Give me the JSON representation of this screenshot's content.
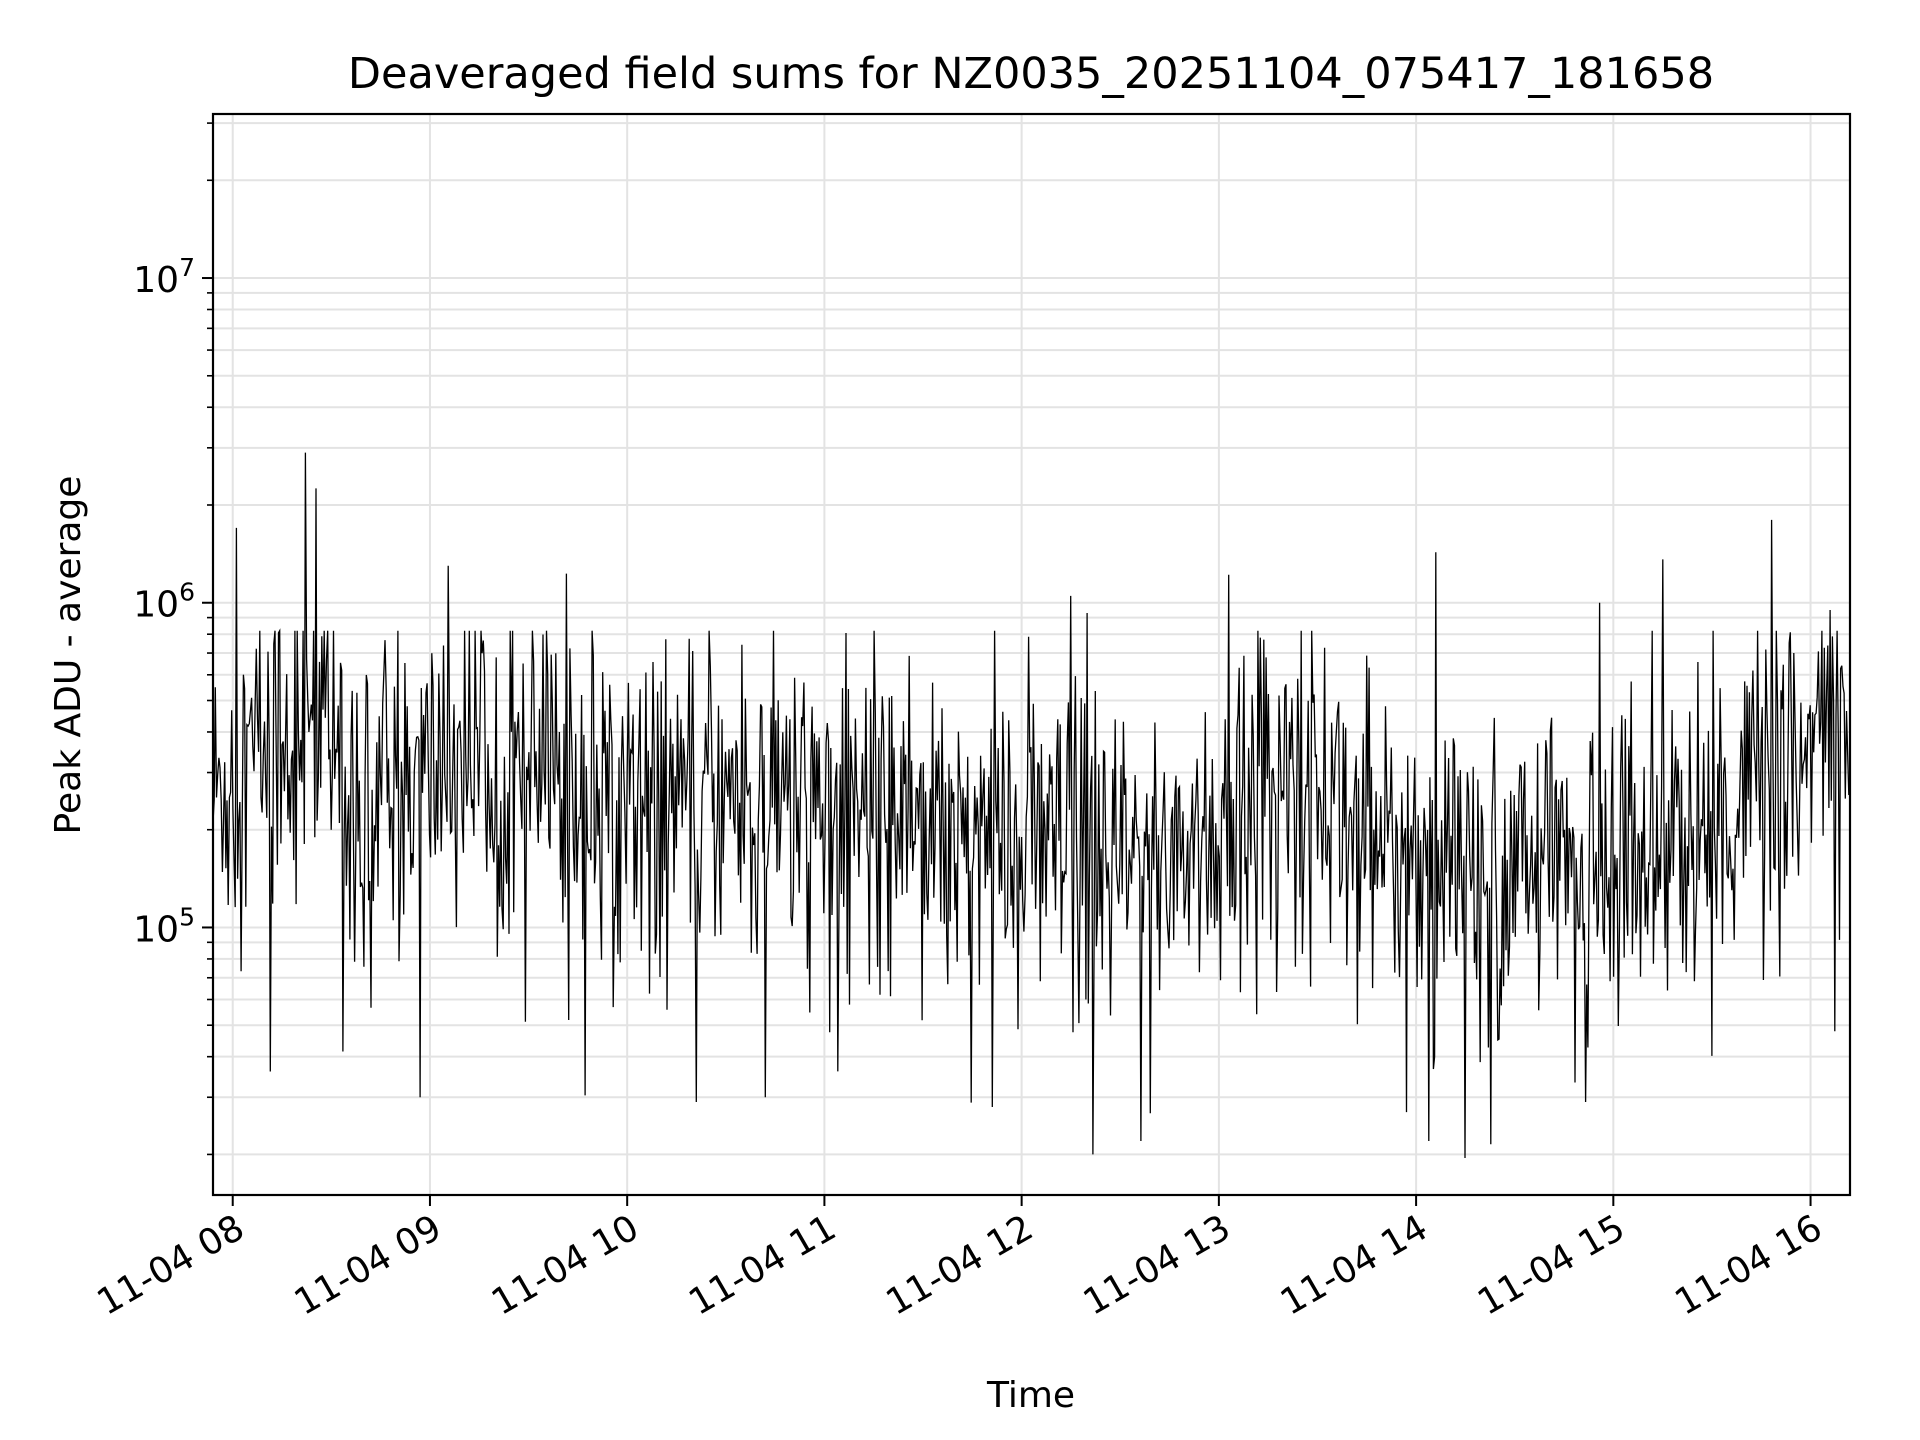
{
  "chart_data": {
    "type": "line",
    "title": "Deaveraged field sums for NZ0035_20251104_075417_181658",
    "xlabel": "Time",
    "ylabel": "Peak ADU - average",
    "yscale": "log",
    "ylim": [
      15000,
      32000000
    ],
    "xlim_hours": [
      7.9,
      16.2
    ],
    "grid": true,
    "x_ticks": [
      {
        "value": 8,
        "label": "11-04 08"
      },
      {
        "value": 9,
        "label": "11-04 09"
      },
      {
        "value": 10,
        "label": "11-04 10"
      },
      {
        "value": 11,
        "label": "11-04 11"
      },
      {
        "value": 12,
        "label": "11-04 12"
      },
      {
        "value": 13,
        "label": "11-04 13"
      },
      {
        "value": 14,
        "label": "11-04 14"
      },
      {
        "value": 15,
        "label": "11-04 15"
      },
      {
        "value": 16,
        "label": "11-04 16"
      }
    ],
    "y_ticks": [
      {
        "value": 100000,
        "base": "10",
        "exp": "5"
      },
      {
        "value": 1000000,
        "base": "10",
        "exp": "6"
      },
      {
        "value": 10000000,
        "base": "10",
        "exp": "7"
      }
    ],
    "series": [
      {
        "name": "Deaveraged field sum",
        "color": "#000000",
        "baseline": [
          [
            7.9,
            250000
          ],
          [
            8.2,
            400000
          ],
          [
            8.5,
            430000
          ],
          [
            8.6,
            250000
          ],
          [
            9.0,
            300000
          ],
          [
            9.3,
            380000
          ],
          [
            9.6,
            280000
          ],
          [
            10.0,
            270000
          ],
          [
            10.5,
            260000
          ],
          [
            11.0,
            250000
          ],
          [
            11.5,
            250000
          ],
          [
            12.0,
            180000
          ],
          [
            12.5,
            150000
          ],
          [
            13.0,
            200000
          ],
          [
            13.3,
            320000
          ],
          [
            13.6,
            250000
          ],
          [
            14.0,
            180000
          ],
          [
            14.3,
            130000
          ],
          [
            14.6,
            150000
          ],
          [
            15.0,
            170000
          ],
          [
            15.4,
            190000
          ],
          [
            15.7,
            260000
          ],
          [
            16.0,
            350000
          ],
          [
            16.2,
            400000
          ]
        ],
        "spikes": [
          [
            8.02,
            1700000
          ],
          [
            8.37,
            2900000
          ],
          [
            8.42,
            2250000
          ],
          [
            9.09,
            1300000
          ],
          [
            9.69,
            1230000
          ],
          [
            12.25,
            1050000
          ],
          [
            12.33,
            930000
          ],
          [
            13.05,
            1220000
          ],
          [
            14.1,
            1430000
          ],
          [
            14.93,
            1000000
          ],
          [
            15.25,
            1360000
          ],
          [
            15.8,
            1800000
          ],
          [
            16.1,
            950000
          ]
        ],
        "dips": [
          [
            8.19,
            36000
          ],
          [
            8.95,
            30000
          ],
          [
            10.35,
            29000
          ],
          [
            10.7,
            30000
          ],
          [
            11.85,
            28000
          ],
          [
            12.36,
            20000
          ],
          [
            13.95,
            27000
          ],
          [
            14.25,
            19500
          ],
          [
            14.38,
            21500
          ],
          [
            14.86,
            29000
          ]
        ],
        "n_points": 1400
      }
    ]
  }
}
